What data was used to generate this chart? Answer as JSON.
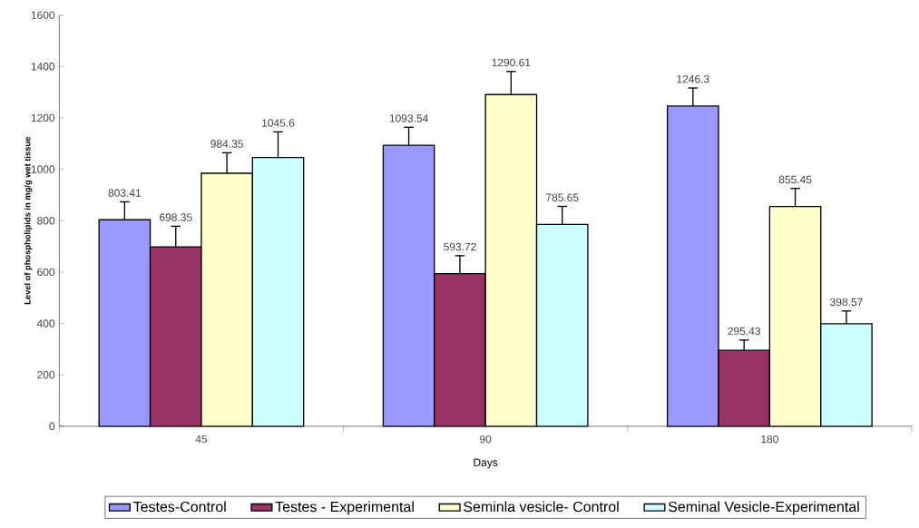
{
  "chart_data": {
    "type": "bar",
    "xlabel": "Days",
    "ylabel": "Level of phospholipids in mg/g wet tissue",
    "categories": [
      "45",
      "90",
      "180"
    ],
    "series": [
      {
        "name": "Testes-Control",
        "color": "#9999ff",
        "values": [
          803.41,
          1093.54,
          1246.3
        ],
        "errors": [
          70,
          70,
          70
        ]
      },
      {
        "name": "Testes - Experimental",
        "color": "#993366",
        "values": [
          698.35,
          593.72,
          295.43
        ],
        "errors": [
          80,
          70,
          40
        ]
      },
      {
        "name": "Seminla vesicle- Control",
        "color": "#ffffcc",
        "values": [
          984.35,
          1290.61,
          855.45
        ],
        "errors": [
          80,
          90,
          70
        ]
      },
      {
        "name": "Seminal Vesicle-Experimental",
        "color": "#ccffff",
        "values": [
          1045.6,
          785.65,
          398.57
        ],
        "errors": [
          100,
          70,
          50
        ]
      }
    ],
    "ylim": [
      0,
      1600
    ],
    "yticks": [
      0,
      200,
      400,
      600,
      800,
      1000,
      1200,
      1400,
      1600
    ],
    "data_labels": true,
    "legend": "bottom",
    "grid": false
  }
}
